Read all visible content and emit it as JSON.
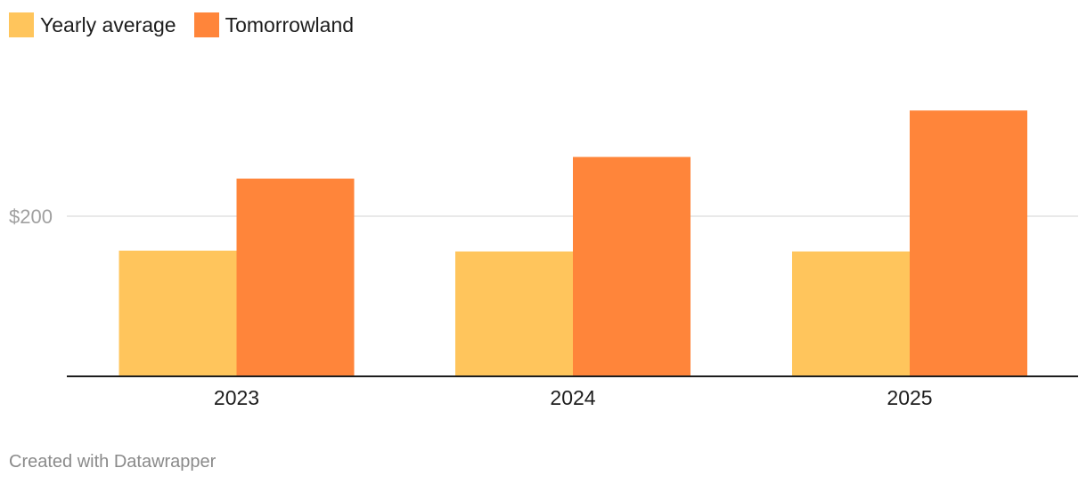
{
  "chart_data": {
    "type": "bar",
    "categories": [
      "2023",
      "2024",
      "2025"
    ],
    "series": [
      {
        "name": "Yearly average",
        "values": [
          157,
          156,
          156
        ],
        "color": "#ffc55c"
      },
      {
        "name": "Tomorrowland",
        "values": [
          247,
          274,
          332
        ],
        "color": "#ff853a"
      }
    ],
    "ylim": [
      0,
      370
    ],
    "yticks": [
      {
        "value": 200,
        "label": "$200"
      }
    ],
    "grid": true,
    "legend_position": "top-left",
    "title": "",
    "xlabel": "",
    "ylabel": ""
  },
  "footer": {
    "credit": "Created with Datawrapper"
  }
}
